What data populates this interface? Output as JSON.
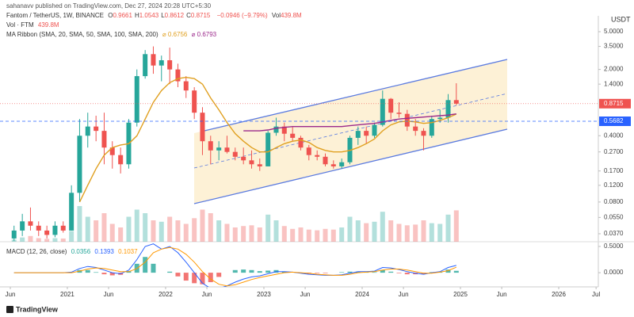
{
  "header": {
    "publisher": "sahanavv published on TradingView.com, Dec 27, 2024 20:28 UTC+5:30",
    "symbol": "Fantom / TetherUS, 1W, BINANCE",
    "ohlc": [
      {
        "key": "O",
        "value": "0.9661"
      },
      {
        "key": "H",
        "value": "1.0543"
      },
      {
        "key": "L",
        "value": "0.8612"
      },
      {
        "key": "C",
        "value": "0.8715"
      }
    ],
    "change": "−0.0946 (−9.79%)",
    "volume_key": "Vol",
    "volume_value": "439.8M",
    "vol_label": "Vol · FTM",
    "vol_value": "439.8M",
    "ma_label": "MA Ribbon (SMA, 20, SMA, 50, SMA, 100, SMA, 200)",
    "ma_values": [
      "⌀ 0.6756",
      "⌀ 0.6793"
    ],
    "macd_label": "MACD (12, 26, close)",
    "macd_values": [
      "0.0356",
      "0.1393",
      "0.1037"
    ],
    "currency": "USDT",
    "brand": "TradingView"
  },
  "chart_data": {
    "type": "candlestick",
    "log_scale": true,
    "up_color": "#26a69a",
    "down_color": "#ef5350",
    "xlim": [
      2020.315,
      2026.403
    ],
    "xticks": [
      {
        "value": 2020.42,
        "label": "Jun"
      },
      2021,
      {
        "value": 2021.42,
        "label": "Jun"
      },
      2022,
      {
        "value": 2022.42,
        "label": "Jun"
      },
      2023,
      {
        "value": 2023.42,
        "label": "Jun"
      },
      2024,
      {
        "value": 2024.42,
        "label": "Jun"
      },
      2025,
      {
        "value": 2025.42,
        "label": "Jun"
      },
      2026,
      {
        "value": 2026.38,
        "label": "Jul"
      }
    ],
    "ylim": [
      0.0305,
      6.3
    ],
    "yticks": [
      {
        "value": 5,
        "label": "5.0000"
      },
      {
        "value": 3.5,
        "label": "3.5000"
      },
      {
        "value": 2,
        "label": "2.0000"
      },
      {
        "value": 1.4,
        "label": "1.4000"
      },
      {
        "value": 0.4,
        "label": "0.4000"
      },
      {
        "value": 0.27,
        "label": "0.2700"
      },
      {
        "value": 0.17,
        "label": "0.1700"
      },
      {
        "value": 0.12,
        "label": "0.1200"
      },
      {
        "value": 0.08,
        "label": "0.0800"
      },
      {
        "value": 0.055,
        "label": "0.0550"
      },
      {
        "value": 0.037,
        "label": "0.0370"
      }
    ],
    "last_price": {
      "value": 0.8715,
      "label": "0.8715",
      "color": "#ef5350"
    },
    "level": {
      "value": 0.5682,
      "label": "0.5682",
      "color": "#2962ff"
    },
    "x": [
      2020.458,
      2020.542,
      2020.625,
      2020.708,
      2020.792,
      2020.875,
      2020.958,
      2021.042,
      2021.125,
      2021.208,
      2021.292,
      2021.375,
      2021.458,
      2021.542,
      2021.625,
      2021.708,
      2021.792,
      2021.875,
      2021.958,
      2022.042,
      2022.125,
      2022.208,
      2022.292,
      2022.375,
      2022.458,
      2022.542,
      2022.625,
      2022.708,
      2022.792,
      2022.875,
      2022.958,
      2023.042,
      2023.125,
      2023.208,
      2023.292,
      2023.375,
      2023.458,
      2023.542,
      2023.625,
      2023.708,
      2023.792,
      2023.875,
      2023.958,
      2024.042,
      2024.125,
      2024.208,
      2024.292,
      2024.375,
      2024.458,
      2024.542,
      2024.625,
      2024.708,
      2024.792,
      2024.875,
      2024.958
    ],
    "open": [
      0.033,
      0.04,
      0.05,
      0.045,
      0.04,
      0.036,
      0.045,
      0.04,
      0.1,
      0.4,
      0.5,
      0.45,
      0.3,
      0.25,
      0.2,
      0.55,
      1.7,
      2.9,
      2.2,
      2.5,
      2.0,
      1.5,
      1.2,
      0.7,
      0.35,
      0.28,
      0.3,
      0.27,
      0.24,
      0.22,
      0.2,
      0.19,
      0.43,
      0.5,
      0.42,
      0.38,
      0.3,
      0.25,
      0.24,
      0.2,
      0.19,
      0.21,
      0.38,
      0.45,
      0.4,
      0.52,
      0.98,
      0.7,
      0.68,
      0.5,
      0.45,
      0.4,
      0.6,
      0.62,
      0.95
    ],
    "high": [
      0.045,
      0.06,
      0.07,
      0.05,
      0.045,
      0.05,
      0.05,
      0.12,
      0.6,
      0.7,
      0.65,
      0.7,
      0.35,
      0.3,
      0.6,
      2.0,
      3.2,
      3.5,
      2.8,
      3.4,
      2.3,
      1.7,
      1.3,
      0.8,
      0.4,
      0.35,
      0.4,
      0.3,
      0.3,
      0.28,
      0.23,
      0.45,
      0.62,
      0.55,
      0.5,
      0.4,
      0.32,
      0.28,
      0.26,
      0.22,
      0.23,
      0.4,
      0.5,
      0.5,
      0.55,
      1.2,
      1.0,
      0.9,
      0.75,
      0.6,
      0.48,
      0.65,
      0.75,
      1.1,
      1.43
    ],
    "low": [
      0.031,
      0.035,
      0.04,
      0.035,
      0.033,
      0.034,
      0.038,
      0.04,
      0.08,
      0.3,
      0.35,
      0.2,
      0.18,
      0.16,
      0.18,
      0.5,
      1.6,
      1.8,
      1.5,
      1.4,
      1.3,
      1.0,
      0.6,
      0.25,
      0.2,
      0.22,
      0.26,
      0.22,
      0.2,
      0.18,
      0.17,
      0.19,
      0.4,
      0.35,
      0.35,
      0.28,
      0.22,
      0.22,
      0.19,
      0.18,
      0.18,
      0.2,
      0.32,
      0.33,
      0.38,
      0.5,
      0.6,
      0.62,
      0.45,
      0.4,
      0.28,
      0.38,
      0.55,
      0.55,
      0.84
    ],
    "close": [
      0.04,
      0.05,
      0.045,
      0.04,
      0.036,
      0.045,
      0.04,
      0.1,
      0.4,
      0.5,
      0.45,
      0.3,
      0.25,
      0.2,
      0.55,
      1.7,
      2.9,
      2.2,
      2.5,
      2.0,
      1.5,
      1.2,
      0.7,
      0.35,
      0.28,
      0.3,
      0.27,
      0.24,
      0.22,
      0.2,
      0.19,
      0.43,
      0.5,
      0.42,
      0.38,
      0.3,
      0.25,
      0.24,
      0.2,
      0.19,
      0.21,
      0.38,
      0.45,
      0.4,
      0.52,
      0.98,
      0.7,
      0.68,
      0.5,
      0.45,
      0.4,
      0.6,
      0.62,
      0.95,
      0.8715
    ],
    "volume": [
      30,
      60,
      80,
      50,
      40,
      50,
      45,
      150,
      500,
      350,
      300,
      400,
      250,
      200,
      350,
      450,
      400,
      300,
      280,
      350,
      300,
      250,
      330,
      450,
      400,
      300,
      250,
      200,
      220,
      230,
      200,
      380,
      300,
      220,
      180,
      200,
      170,
      160,
      180,
      170,
      200,
      350,
      300,
      260,
      280,
      420,
      300,
      250,
      230,
      240,
      300,
      260,
      250,
      380,
      439.8
    ],
    "ma_ribbon": [
      {
        "color": "#e0a020",
        "values": [
          null,
          null,
          null,
          null,
          null,
          null,
          null,
          null,
          0.08,
          0.12,
          0.18,
          0.25,
          0.3,
          0.32,
          0.33,
          0.4,
          0.6,
          0.9,
          1.2,
          1.45,
          1.6,
          1.65,
          1.6,
          1.4,
          1.0,
          0.75,
          0.55,
          0.42,
          0.35,
          0.3,
          0.27,
          0.27,
          0.3,
          0.33,
          0.35,
          0.36,
          0.34,
          0.3,
          0.28,
          0.27,
          0.27,
          0.28,
          0.3,
          0.33,
          0.37,
          0.45,
          0.52,
          0.56,
          0.57,
          0.56,
          0.54,
          0.55,
          0.58,
          0.62,
          0.6756
        ]
      },
      {
        "color": "#9c2a8c",
        "values": [
          null,
          null,
          null,
          null,
          null,
          null,
          null,
          null,
          null,
          null,
          null,
          null,
          null,
          null,
          null,
          null,
          null,
          null,
          null,
          null,
          null,
          null,
          null,
          null,
          null,
          null,
          null,
          null,
          0.45,
          0.45,
          0.45,
          0.46,
          0.48,
          0.49,
          0.5,
          0.5,
          0.5,
          0.5,
          0.5,
          0.5,
          0.5,
          0.51,
          0.52,
          0.53,
          0.54,
          0.56,
          0.58,
          0.6,
          0.61,
          0.62,
          0.63,
          0.64,
          0.65,
          0.66,
          0.6793
        ]
      }
    ],
    "macd": {
      "ylim": [
        -0.27,
        0.59
      ],
      "yticks": [
        {
          "value": 0.5,
          "label": "0.5000"
        },
        {
          "value": 0,
          "label": "0.0000"
        }
      ],
      "lines": [
        {
          "color": "#2962ff",
          "values": [
            0,
            0,
            0,
            0,
            0,
            0,
            0,
            0.01,
            0.08,
            0.12,
            0.1,
            0.05,
            0,
            -0.02,
            0.05,
            0.25,
            0.5,
            0.55,
            0.45,
            0.5,
            0.38,
            0.2,
            0,
            -0.2,
            -0.3,
            -0.3,
            -0.25,
            -0.18,
            -0.12,
            -0.08,
            -0.06,
            -0.02,
            0.02,
            0.02,
            0.01,
            -0.01,
            -0.03,
            -0.04,
            -0.05,
            -0.05,
            -0.04,
            -0.01,
            0.02,
            0.02,
            0.03,
            0.1,
            0.09,
            0.06,
            0.02,
            -0.01,
            -0.03,
            0,
            0.02,
            0.1,
            0.1393
          ]
        },
        {
          "color": "#ff9800",
          "values": [
            0,
            0,
            0,
            0,
            0,
            0,
            0,
            0,
            0.03,
            0.07,
            0.09,
            0.08,
            0.05,
            0.02,
            0.02,
            0.08,
            0.2,
            0.38,
            0.45,
            0.48,
            0.45,
            0.35,
            0.2,
            0.02,
            -0.12,
            -0.22,
            -0.25,
            -0.23,
            -0.18,
            -0.13,
            -0.09,
            -0.06,
            -0.03,
            0,
            0.01,
            0,
            -0.01,
            -0.03,
            -0.04,
            -0.05,
            -0.05,
            -0.03,
            0,
            0.01,
            0.02,
            0.05,
            0.07,
            0.07,
            0.05,
            0.02,
            -0.01,
            -0.01,
            0.01,
            0.04,
            0.1037
          ]
        }
      ],
      "histogram": [
        0,
        0,
        0,
        0,
        0,
        0,
        0,
        0.01,
        0.05,
        0.05,
        0.01,
        -0.03,
        -0.05,
        -0.04,
        0.03,
        0.17,
        0.3,
        0.17,
        0,
        0.02,
        -0.07,
        -0.15,
        -0.2,
        -0.22,
        -0.18,
        -0.08,
        0,
        0.05,
        0.06,
        0.05,
        0.03,
        0.04,
        0.05,
        0.02,
        0,
        -0.01,
        -0.02,
        -0.01,
        -0.01,
        0,
        0.01,
        0.02,
        0.02,
        0.01,
        0.01,
        0.05,
        0.02,
        -0.01,
        -0.03,
        -0.03,
        -0.02,
        0.01,
        0.01,
        0.06,
        0.0356
      ]
    }
  }
}
